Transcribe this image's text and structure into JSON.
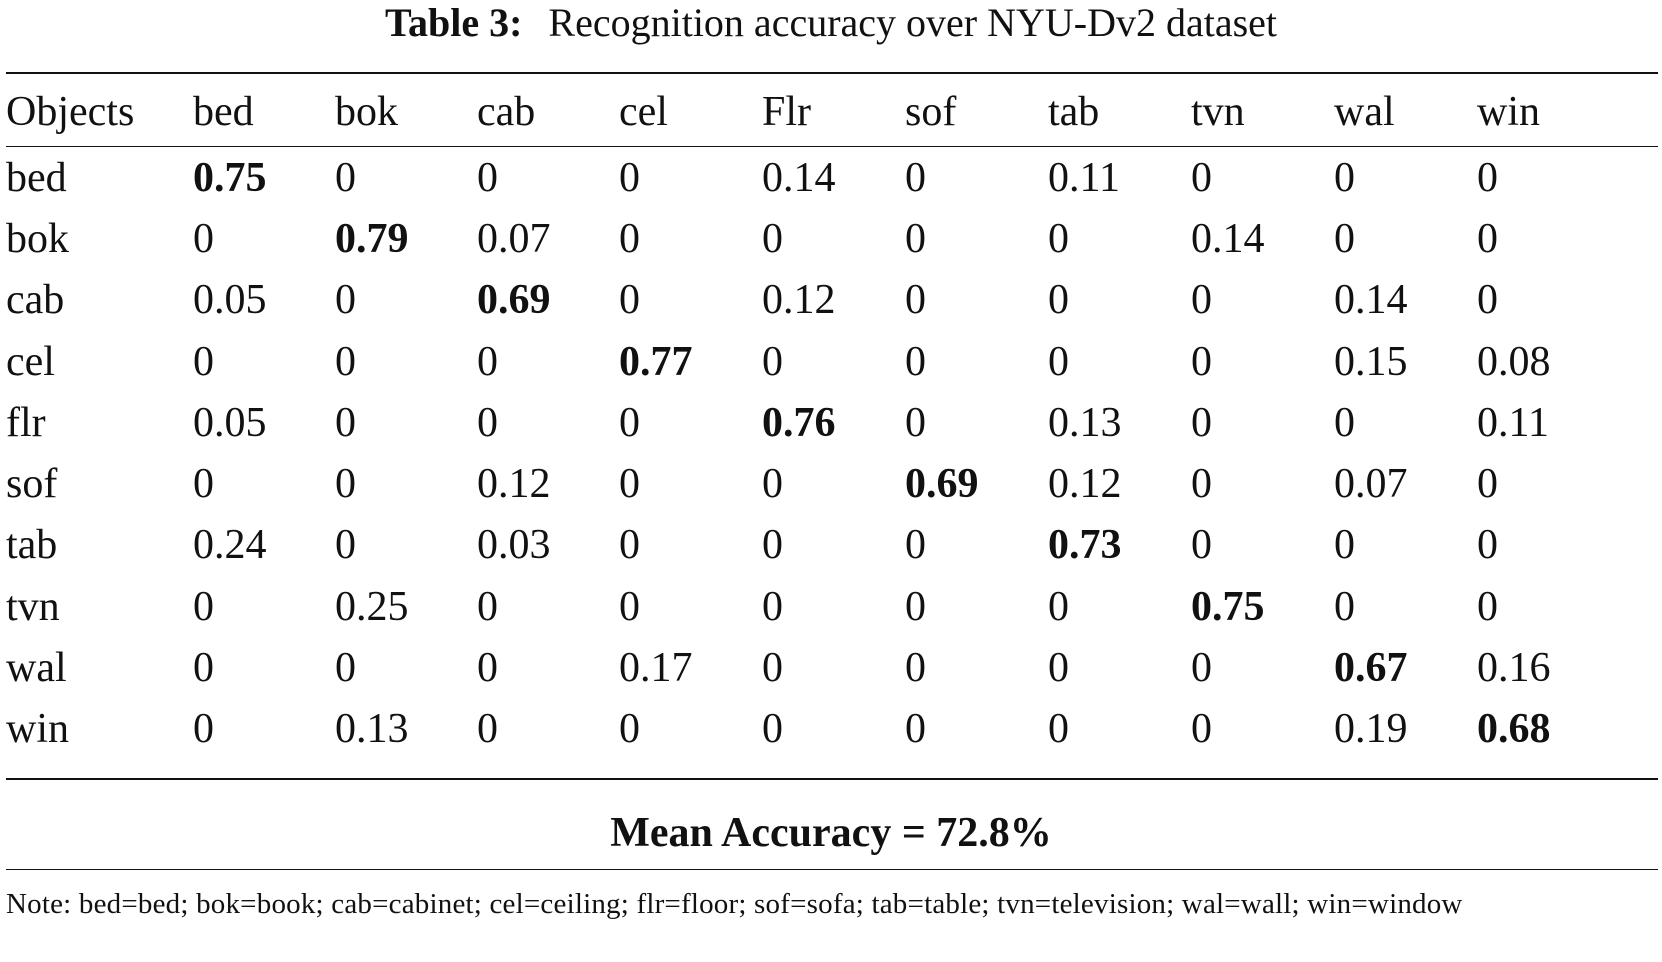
{
  "table_label": "Table 3:",
  "table_title": "Recognition accuracy over NYU-Dv2 dataset",
  "header": [
    "Objects",
    "bed",
    "bok",
    "cab",
    "cel",
    "Flr",
    "sof",
    "tab",
    "tvn",
    "wal",
    "win"
  ],
  "rows": [
    {
      "label": "bed",
      "values": [
        "0.75",
        "0",
        "0",
        "0",
        "0.14",
        "0",
        "0.11",
        "0",
        "0",
        "0"
      ],
      "bold_index": 0
    },
    {
      "label": "bok",
      "values": [
        "0",
        "0.79",
        "0.07",
        "0",
        "0",
        "0",
        "0",
        "0.14",
        "0",
        "0"
      ],
      "bold_index": 1
    },
    {
      "label": "cab",
      "values": [
        "0.05",
        "0",
        "0.69",
        "0",
        "0.12",
        "0",
        "0",
        "0",
        "0.14",
        "0"
      ],
      "bold_index": 2
    },
    {
      "label": "cel",
      "values": [
        "0",
        "0",
        "0",
        "0.77",
        "0",
        "0",
        "0",
        "0",
        "0.15",
        "0.08"
      ],
      "bold_index": 3
    },
    {
      "label": "flr",
      "values": [
        "0.05",
        "0",
        "0",
        "0",
        "0.76",
        "0",
        "0.13",
        "0",
        "0",
        "0.11"
      ],
      "bold_index": 4
    },
    {
      "label": "sof",
      "values": [
        "0",
        "0",
        "0.12",
        "0",
        "0",
        "0.69",
        "0.12",
        "0",
        "0.07",
        "0"
      ],
      "bold_index": 5
    },
    {
      "label": "tab",
      "values": [
        "0.24",
        "0",
        "0.03",
        "0",
        "0",
        "0",
        "0.73",
        "0",
        "0",
        "0"
      ],
      "bold_index": 6
    },
    {
      "label": "tvn",
      "values": [
        "0",
        "0.25",
        "0",
        "0",
        "0",
        "0",
        "0",
        "0.75",
        "0",
        "0"
      ],
      "bold_index": 7
    },
    {
      "label": "wal",
      "values": [
        "0",
        "0",
        "0",
        "0.17",
        "0",
        "0",
        "0",
        "0",
        "0.67",
        "0.16"
      ],
      "bold_index": 8
    },
    {
      "label": "win",
      "values": [
        "0",
        "0.13",
        "0",
        "0",
        "0",
        "0",
        "0",
        "0",
        "0.19",
        "0.68"
      ],
      "bold_index": 9
    }
  ],
  "mean_accuracy": "Mean Accuracy = 72.8%",
  "note": "Note: bed=bed; bok=book; cab=cabinet; cel=ceiling; flr=floor; sof=sofa; tab=table; tvn=television; wal=wall; win=window"
}
